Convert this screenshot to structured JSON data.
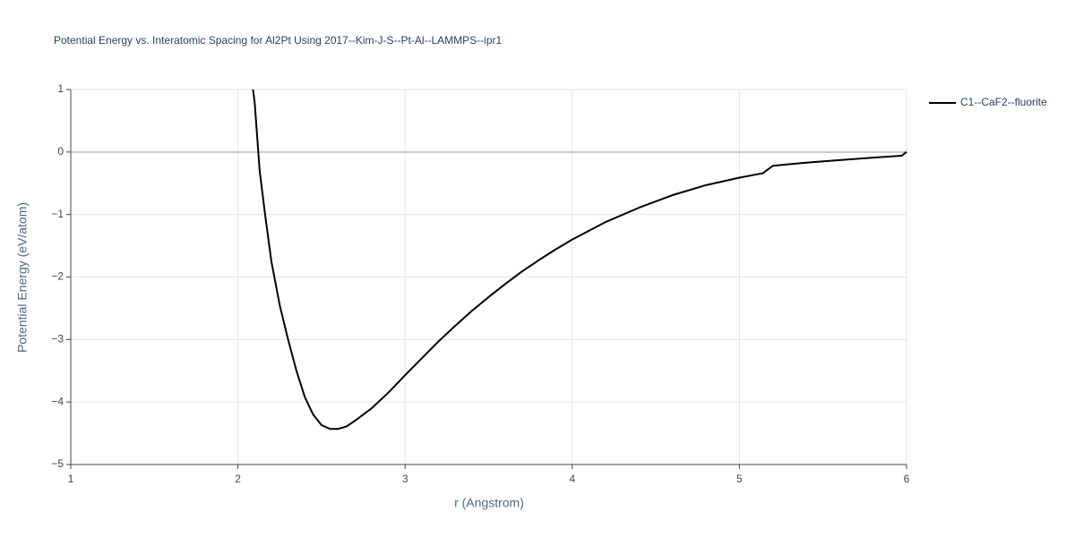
{
  "chart_data": {
    "type": "line",
    "title": "Potential Energy vs. Interatomic Spacing for Al2Pt Using 2017--Kim-J-S--Pt-Al--LAMMPS--ipr1",
    "x_label": "r (Angstrom)",
    "y_label": "Potential Energy (eV/atom)",
    "xlim": [
      1,
      6
    ],
    "ylim": [
      -5,
      1
    ],
    "xticks": [
      1,
      2,
      3,
      4,
      5,
      6
    ],
    "yticks": [
      {
        "value": -5,
        "label": "−5"
      },
      {
        "value": -4,
        "label": "−4"
      },
      {
        "value": -3,
        "label": "−3"
      },
      {
        "value": -2,
        "label": "−2"
      },
      {
        "value": -1,
        "label": "−1"
      },
      0,
      1
    ],
    "grid": true,
    "legend": "right",
    "series": [
      {
        "name": "C1--CaF2--fluorite",
        "color": "#000000",
        "x": [
          2.09,
          2.1,
          2.13,
          2.16,
          2.2,
          2.25,
          2.3,
          2.35,
          2.4,
          2.45,
          2.5,
          2.55,
          2.6,
          2.65,
          2.7,
          2.8,
          2.9,
          3.0,
          3.1,
          3.2,
          3.3,
          3.4,
          3.5,
          3.6,
          3.7,
          3.8,
          3.9,
          4.0,
          4.2,
          4.4,
          4.6,
          4.8,
          5.0,
          5.14,
          5.2,
          5.4,
          5.6,
          5.8,
          5.97,
          6.0
        ],
        "values": [
          1.0,
          0.8,
          -0.3,
          -0.95,
          -1.75,
          -2.45,
          -3.0,
          -3.5,
          -3.92,
          -4.2,
          -4.37,
          -4.43,
          -4.43,
          -4.39,
          -4.3,
          -4.1,
          -3.85,
          -3.57,
          -3.3,
          -3.03,
          -2.78,
          -2.54,
          -2.32,
          -2.11,
          -1.91,
          -1.73,
          -1.56,
          -1.4,
          -1.12,
          -0.89,
          -0.69,
          -0.53,
          -0.41,
          -0.34,
          -0.22,
          -0.17,
          -0.13,
          -0.09,
          -0.06,
          0.0
        ]
      }
    ]
  }
}
